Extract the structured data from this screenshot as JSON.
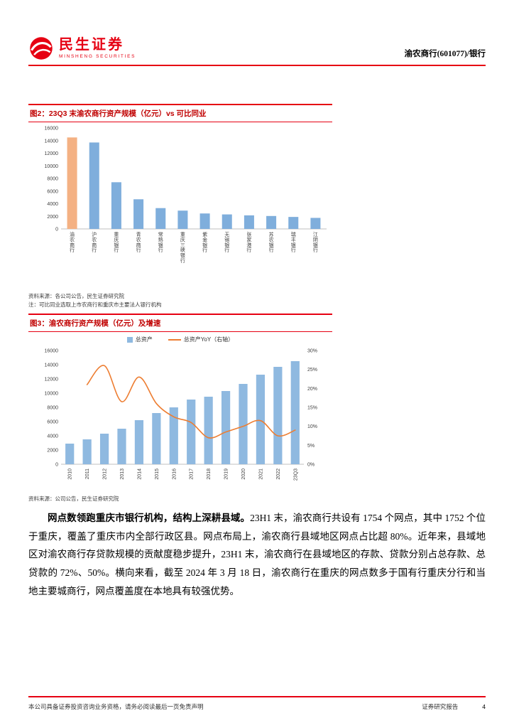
{
  "header": {
    "brand_cn": "民生证券",
    "brand_en": "MINSHENG SECURITIES",
    "doc_title": "渝农商行(601077)/银行"
  },
  "figure2": {
    "source": "资料来源：各公司公告，民生证券研究院",
    "note": "注：可比同业选取上市农商行和重庆市主要法人银行机构"
  },
  "figure3": {
    "source": "资料来源：公司公告，民生证券研究院"
  },
  "paragraph": {
    "lead": "网点数领跑重庆市银行机构，结构上深耕县域。",
    "body": "23H1 末，渝农商行共设有 1754 个网点，其中 1752 个位于重庆，覆盖了重庆市内全部行政区县。网点布局上，渝农商行县域地区网点占比超 80%。近年来，县域地区对渝农商行存贷款规模的贡献度稳步提升，23H1 末，渝农商行在县域地区的存款、贷款分别占总存款、总贷款的 72%、50%。横向来看，截至 2024 年 3 月 18 日，渝农商行在重庆的网点数多于国有行重庆分行和当地主要城商行，网点覆盖度在本地具有较强优势。"
  },
  "footer": {
    "left": "本公司具备证券投资咨询业务资格，请务必阅读最后一页免责声明",
    "right": "证券研究报告",
    "page": "4"
  },
  "chart_data": [
    {
      "type": "bar",
      "title": "图2：23Q3 末渝农商行资产规模（亿元）vs 可比同业",
      "categories": [
        "渝农商行",
        "沪农商行",
        "重庆银行",
        "青农商行",
        "常熟银行",
        "重庆三峡银行",
        "紫金银行",
        "无锡银行",
        "张家港行",
        "苏农银行",
        "瑞丰银行",
        "江阴银行"
      ],
      "values": [
        14500,
        13700,
        7400,
        4700,
        3300,
        2900,
        2450,
        2300,
        2150,
        2050,
        1900,
        1750
      ],
      "highlight_index": 0,
      "bar_color": "#7FAEDC",
      "highlight_color": "#F4B183",
      "ylim": [
        0,
        16000
      ],
      "ytick_step": 2000,
      "grid": false,
      "legend": "none"
    },
    {
      "type": "bar-line",
      "title": "图3：渝农商行资产规模（亿元）及增速",
      "categories": [
        "2010",
        "2011",
        "2012",
        "2013",
        "2014",
        "2015",
        "2016",
        "2017",
        "2018",
        "2019",
        "2020",
        "2021",
        "2022",
        "23Q3"
      ],
      "series": [
        {
          "name": "总资产",
          "type": "bar",
          "axis": "left",
          "color": "#8FB9E0",
          "values": [
            2900,
            3500,
            4300,
            5000,
            6200,
            7200,
            8000,
            9100,
            9500,
            10300,
            11300,
            12600,
            13700,
            14500
          ]
        },
        {
          "name": "总资产YoY（右轴）",
          "type": "line",
          "axis": "right",
          "color": "#ED7D31",
          "values": [
            null,
            0.21,
            0.26,
            0.165,
            0.23,
            0.16,
            0.125,
            0.11,
            0.07,
            0.085,
            0.1,
            0.115,
            0.075,
            0.09
          ]
        }
      ],
      "ylim_left": [
        0,
        16000
      ],
      "ytick_step_left": 2000,
      "ylim_right": [
        0,
        0.3
      ],
      "ytick_step_right": 0.05,
      "legend_position": "top",
      "grid": false
    }
  ]
}
